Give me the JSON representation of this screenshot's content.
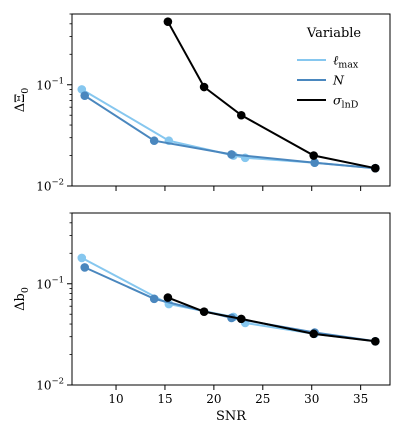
{
  "chart_data": [
    {
      "type": "line",
      "panel": "top",
      "title": "",
      "xlabel": "",
      "ylabel_main": "ΔΞ",
      "ylabel_sub": "0",
      "yscale": "log",
      "xlim": [
        5.5,
        38
      ],
      "ylim": [
        0.01,
        0.5
      ],
      "yticks": [
        {
          "value": 0.1,
          "base": "10",
          "exp": "−1"
        },
        {
          "value": 0.01,
          "base": "10",
          "exp": "−2"
        }
      ],
      "xticks": [],
      "grid": false,
      "legend": {
        "title": "Variable",
        "placement": "top-right",
        "entries": [
          {
            "series": "lmax",
            "main": "ℓ",
            "sub": "max",
            "italic": true
          },
          {
            "series": "N",
            "main": "N",
            "sub": "",
            "italic": true
          },
          {
            "series": "sigma",
            "main": "σ",
            "sub": "lnD",
            "italic": true
          }
        ]
      },
      "series": [
        {
          "key": "lmax",
          "color": "#86c7ef",
          "x": [
            6.5,
            15.4,
            22.0,
            23.2,
            30.3,
            36.5
          ],
          "y": [
            0.09,
            0.028,
            0.02,
            0.019,
            0.017,
            0.015
          ]
        },
        {
          "key": "N",
          "color": "#4a87be",
          "x": [
            6.8,
            13.9,
            21.8,
            30.3,
            36.5
          ],
          "y": [
            0.078,
            0.028,
            0.0205,
            0.017,
            0.015
          ]
        },
        {
          "key": "sigma",
          "color": "#000000",
          "x": [
            15.3,
            19.0,
            22.8,
            30.2,
            36.5
          ],
          "y": [
            0.42,
            0.095,
            0.05,
            0.02,
            0.015
          ]
        }
      ]
    },
    {
      "type": "line",
      "panel": "bottom",
      "title": "",
      "xlabel": "SNR",
      "ylabel_main": "Δb",
      "ylabel_sub": "0",
      "yscale": "log",
      "xlim": [
        5.5,
        38
      ],
      "ylim": [
        0.01,
        0.5
      ],
      "yticks": [
        {
          "value": 0.1,
          "base": "10",
          "exp": "−1"
        },
        {
          "value": 0.01,
          "base": "10",
          "exp": "−2"
        }
      ],
      "xticks": [
        "10",
        "15",
        "20",
        "25",
        "30",
        "35"
      ],
      "grid": false,
      "series": [
        {
          "key": "lmax",
          "color": "#86c7ef",
          "x": [
            6.5,
            15.4,
            22.0,
            23.2,
            30.3,
            36.5
          ],
          "y": [
            0.18,
            0.063,
            0.047,
            0.041,
            0.032,
            0.027
          ]
        },
        {
          "key": "N",
          "color": "#4a87be",
          "x": [
            6.8,
            13.9,
            21.8,
            30.3,
            36.5
          ],
          "y": [
            0.145,
            0.071,
            0.046,
            0.033,
            0.027
          ]
        },
        {
          "key": "sigma",
          "color": "#000000",
          "x": [
            15.3,
            19.0,
            22.8,
            30.2,
            36.5
          ],
          "y": [
            0.073,
            0.053,
            0.045,
            0.032,
            0.027
          ]
        }
      ]
    }
  ]
}
